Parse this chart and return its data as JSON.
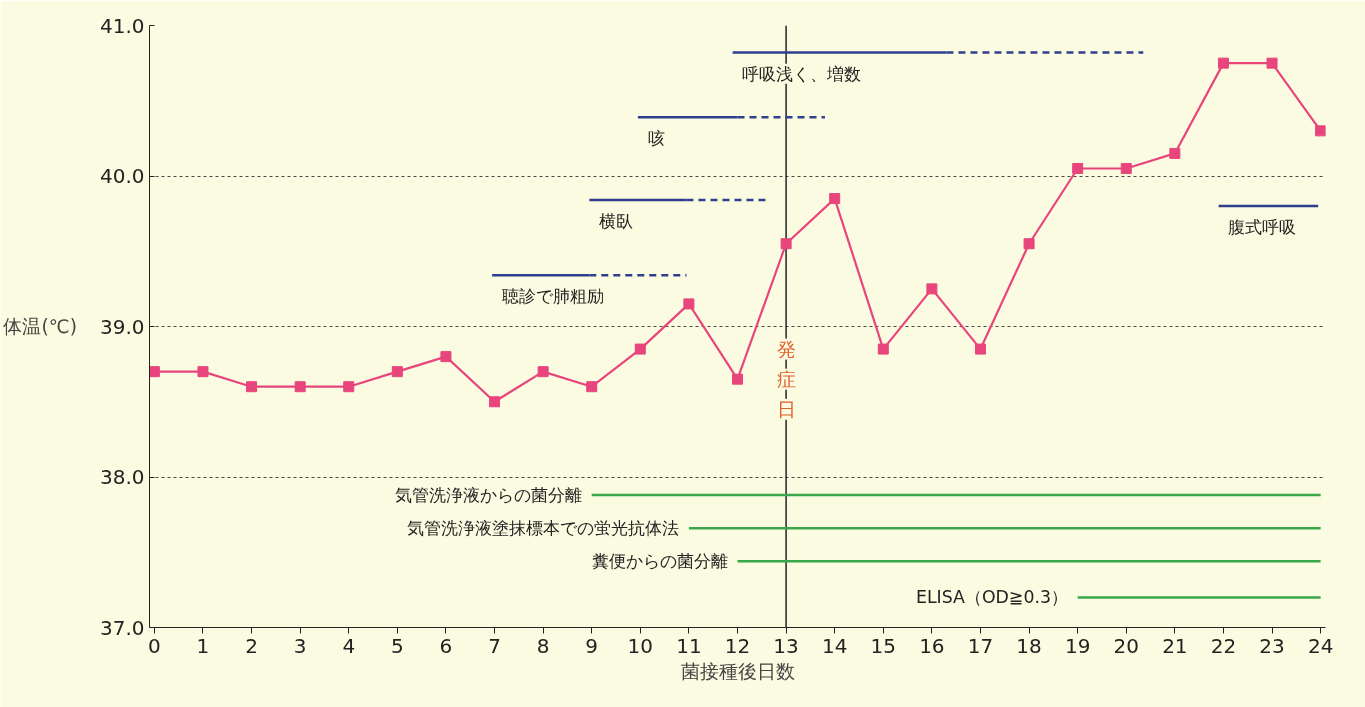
{
  "chart_data": {
    "type": "line",
    "xlabel": "菌接種後日数",
    "ylabel": "体温(℃)",
    "x": [
      0,
      1,
      2,
      3,
      4,
      5,
      6,
      7,
      8,
      9,
      10,
      11,
      12,
      13,
      14,
      15,
      16,
      17,
      18,
      19,
      20,
      21,
      22,
      23,
      24
    ],
    "xlim": [
      -0.1,
      24.1
    ],
    "xticks": [
      0,
      1,
      2,
      3,
      4,
      5,
      6,
      7,
      8,
      9,
      10,
      11,
      12,
      13,
      14,
      15,
      16,
      17,
      18,
      19,
      20,
      21,
      22,
      23,
      24
    ],
    "ylim": [
      37.0,
      41.0
    ],
    "yticks": [
      {
        "value": 37,
        "label": "37.0"
      },
      {
        "value": 38,
        "label": "38.0"
      },
      {
        "value": 39,
        "label": "39.0"
      },
      {
        "value": 40,
        "label": "40.0"
      },
      {
        "value": 41,
        "label": "41.0"
      }
    ],
    "grid": "y",
    "series": [
      {
        "color": "#e8457d",
        "marker": "square",
        "line_style": "solid",
        "values": [
          38.7,
          38.7,
          38.6,
          38.6,
          38.6,
          38.7,
          38.8,
          38.5,
          38.7,
          38.6,
          38.85,
          39.15,
          38.65,
          39.55,
          39.85,
          38.85,
          39.25,
          38.85,
          39.55,
          40.05,
          40.05,
          40.15,
          40.75,
          40.75,
          40.3
        ]
      },
      {
        "name": "呼吸浅く、増数",
        "color": "#2e3f8f",
        "marker": "none",
        "line_style": "solid",
        "x": [
          11.9,
          16.3
        ],
        "values": [
          40.82,
          40.82
        ]
      },
      {
        "color": "#2e3f8f",
        "marker": "none",
        "line_style": "dashed",
        "x": [
          16.3,
          20.35
        ],
        "values": [
          40.82,
          40.82
        ]
      },
      {
        "name": "咳",
        "color": "#2e3f8f",
        "marker": "none",
        "line_style": "solid",
        "x": [
          9.95,
          12.0
        ],
        "values": [
          40.39,
          40.39
        ]
      },
      {
        "color": "#2e3f8f",
        "marker": "none",
        "line_style": "dashed",
        "x": [
          12.0,
          13.8
        ],
        "values": [
          40.39,
          40.39
        ]
      },
      {
        "name": "横臥",
        "color": "#2e3f8f",
        "marker": "none",
        "line_style": "solid",
        "x": [
          8.95,
          10.95
        ],
        "values": [
          39.84,
          39.84
        ]
      },
      {
        "color": "#2e3f8f",
        "marker": "none",
        "line_style": "dashed",
        "x": [
          10.95,
          12.6
        ],
        "values": [
          39.84,
          39.84
        ]
      },
      {
        "name": "聴診で肺粗励",
        "color": "#2e3f8f",
        "marker": "none",
        "line_style": "solid",
        "x": [
          6.95,
          8.95
        ],
        "values": [
          39.34,
          39.34
        ]
      },
      {
        "color": "#2e3f8f",
        "marker": "none",
        "line_style": "dashed",
        "x": [
          8.95,
          10.95
        ],
        "values": [
          39.34,
          39.34
        ]
      },
      {
        "name": "腹式呼吸",
        "color": "#2e3f8f",
        "marker": "none",
        "line_style": "solid",
        "x": [
          21.9,
          23.95
        ],
        "values": [
          39.8,
          39.8
        ]
      },
      {
        "name": "気管洗浄液からの菌分離",
        "color": "#3aa84a",
        "marker": "none",
        "line_style": "solid",
        "x": [
          9,
          24
        ],
        "values": [
          37.88,
          37.88
        ]
      },
      {
        "name": "気管洗浄液塗抹標本での蛍光抗体法",
        "color": "#3aa84a",
        "marker": "none",
        "line_style": "solid",
        "x": [
          11,
          24
        ],
        "values": [
          37.66,
          37.66
        ]
      },
      {
        "name": "糞便からの菌分離",
        "color": "#3aa84a",
        "marker": "none",
        "line_style": "solid",
        "x": [
          12,
          24
        ],
        "values": [
          37.44,
          37.44
        ]
      },
      {
        "name": "ELISA（OD≧0.3）",
        "color": "#3aa84a",
        "marker": "none",
        "line_style": "solid",
        "x": [
          19,
          24
        ],
        "values": [
          37.2,
          37.2
        ]
      }
    ],
    "ref_lines": [
      {
        "axis": "x",
        "value": 13,
        "label": "発症日",
        "color": "#222222"
      }
    ]
  }
}
